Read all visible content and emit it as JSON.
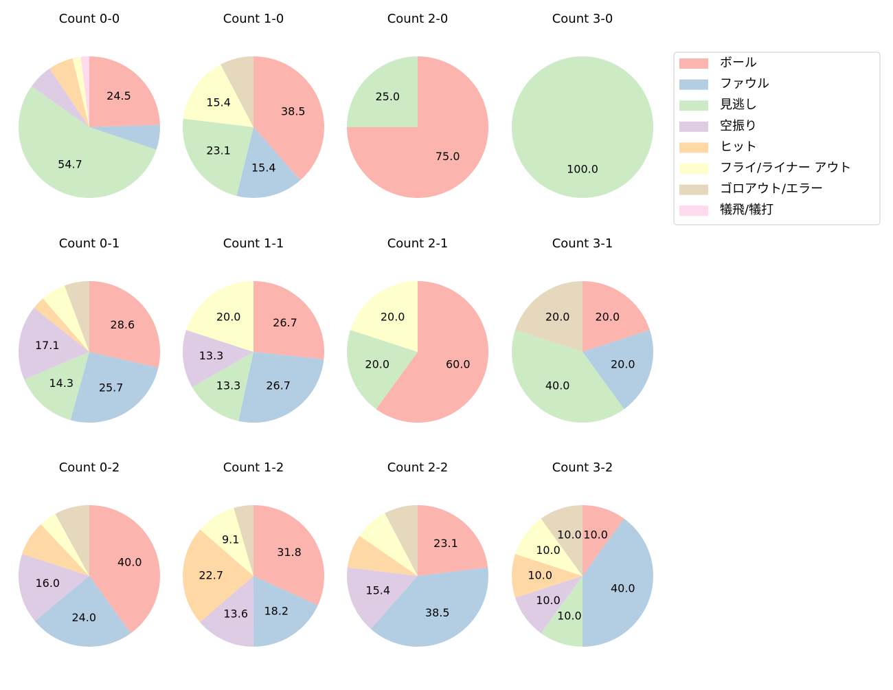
{
  "legend": {
    "labels": [
      "ボール",
      "ファウル",
      "見逃し",
      "空振り",
      "ヒット",
      "フライ/ライナー アウト",
      "ゴロアウト/エラー",
      "犠飛/犠打"
    ],
    "colors": [
      "#fbb4ae",
      "#b3cde3",
      "#ccebc5",
      "#decbe4",
      "#fed9a6",
      "#ffffcc",
      "#e5d8bd",
      "#fddaec"
    ],
    "loc": "upper right"
  },
  "chart_data": [
    {
      "type": "pie",
      "title": "Count 0-0",
      "values": [
        24.5,
        5.7,
        54.7,
        5.7,
        5.7,
        1.9,
        0,
        1.9
      ],
      "value_labels": [
        "24.5",
        null,
        "54.7",
        null,
        null,
        null,
        null,
        null
      ]
    },
    {
      "type": "pie",
      "title": "Count 1-0",
      "values": [
        38.5,
        15.4,
        23.1,
        0,
        0,
        15.4,
        7.7,
        0
      ],
      "value_labels": [
        "38.5",
        "15.4",
        "23.1",
        null,
        null,
        "15.4",
        null,
        null
      ]
    },
    {
      "type": "pie",
      "title": "Count 2-0",
      "values": [
        75,
        0,
        25,
        0,
        0,
        0,
        0,
        0
      ],
      "value_labels": [
        "75.0",
        null,
        "25.0",
        null,
        null,
        null,
        null,
        null
      ]
    },
    {
      "type": "pie",
      "title": "Count 3-0",
      "values": [
        0,
        0,
        100,
        0,
        0,
        0,
        0,
        0
      ],
      "value_labels": [
        null,
        null,
        "100.0",
        null,
        null,
        null,
        null,
        null
      ]
    },
    {
      "type": "pie",
      "title": "Count 0-1",
      "values": [
        28.6,
        25.7,
        14.3,
        17.1,
        2.9,
        5.7,
        5.7,
        0
      ],
      "value_labels": [
        "28.6",
        "25.7",
        "14.3",
        "17.1",
        null,
        null,
        null,
        null
      ]
    },
    {
      "type": "pie",
      "title": "Count 1-1",
      "values": [
        26.7,
        26.7,
        13.3,
        13.3,
        0,
        20,
        0,
        0
      ],
      "value_labels": [
        "26.7",
        "26.7",
        "13.3",
        "13.3",
        null,
        "20.0",
        null,
        null
      ]
    },
    {
      "type": "pie",
      "title": "Count 2-1",
      "values": [
        60,
        0,
        20,
        0,
        0,
        20,
        0,
        0
      ],
      "value_labels": [
        "60.0",
        null,
        "20.0",
        null,
        null,
        "20.0",
        null,
        null
      ]
    },
    {
      "type": "pie",
      "title": "Count 3-1",
      "values": [
        20,
        20,
        40,
        0,
        0,
        0,
        20,
        0
      ],
      "value_labels": [
        "20.0",
        "20.0",
        "40.0",
        null,
        null,
        null,
        "20.0",
        null
      ]
    },
    {
      "type": "pie",
      "title": "Count 0-2",
      "values": [
        40,
        24,
        0,
        16,
        8,
        4,
        8,
        0
      ],
      "value_labels": [
        "40.0",
        "24.0",
        null,
        "16.0",
        null,
        null,
        null,
        null
      ]
    },
    {
      "type": "pie",
      "title": "Count 1-2",
      "values": [
        31.8,
        18.2,
        0,
        13.6,
        22.7,
        9.1,
        4.5,
        0
      ],
      "value_labels": [
        "31.8",
        "18.2",
        null,
        "13.6",
        "22.7",
        "9.1",
        null,
        null
      ]
    },
    {
      "type": "pie",
      "title": "Count 2-2",
      "values": [
        23.1,
        38.5,
        0,
        15.4,
        7.7,
        7.7,
        7.7,
        0
      ],
      "value_labels": [
        "23.1",
        "38.5",
        null,
        "15.4",
        null,
        null,
        null,
        null
      ]
    },
    {
      "type": "pie",
      "title": "Count 3-2",
      "values": [
        10,
        40,
        10,
        10,
        10,
        10,
        10,
        0
      ],
      "value_labels": [
        "10.0",
        "40.0",
        "10.0",
        "10.0",
        "10.0",
        "10.0",
        "10.0",
        null
      ]
    }
  ]
}
